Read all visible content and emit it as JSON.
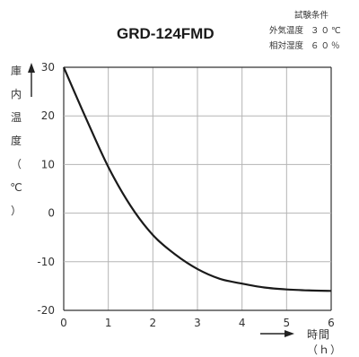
{
  "chart_data": {
    "type": "line",
    "title": "GRD-124FMD",
    "conditions_heading": "試験条件",
    "conditions": [
      {
        "label": "外気温度",
        "value": "３０℃"
      },
      {
        "label": "相対湿度",
        "value": "６０％"
      }
    ],
    "ylabel_chars": [
      "庫",
      "内",
      "温",
      "度",
      "（",
      "℃",
      "）"
    ],
    "xlabel": "時間（ｈ）",
    "xlim": [
      0,
      6
    ],
    "ylim": [
      -20,
      30
    ],
    "x_ticks": [
      "0",
      "1",
      "2",
      "3",
      "4",
      "5",
      "6"
    ],
    "y_ticks": [
      "30",
      "20",
      "10",
      "0",
      "-10",
      "-20"
    ],
    "grid": true,
    "series": [
      {
        "x": [
          0,
          0.5,
          1,
          1.5,
          2,
          2.5,
          3,
          3.5,
          4,
          4.5,
          5,
          5.5,
          6
        ],
        "values": [
          30,
          19.5,
          9.5,
          1.5,
          -4.5,
          -8.5,
          -11.5,
          -13.5,
          -14.5,
          -15.3,
          -15.7,
          -15.9,
          -16
        ]
      }
    ]
  }
}
